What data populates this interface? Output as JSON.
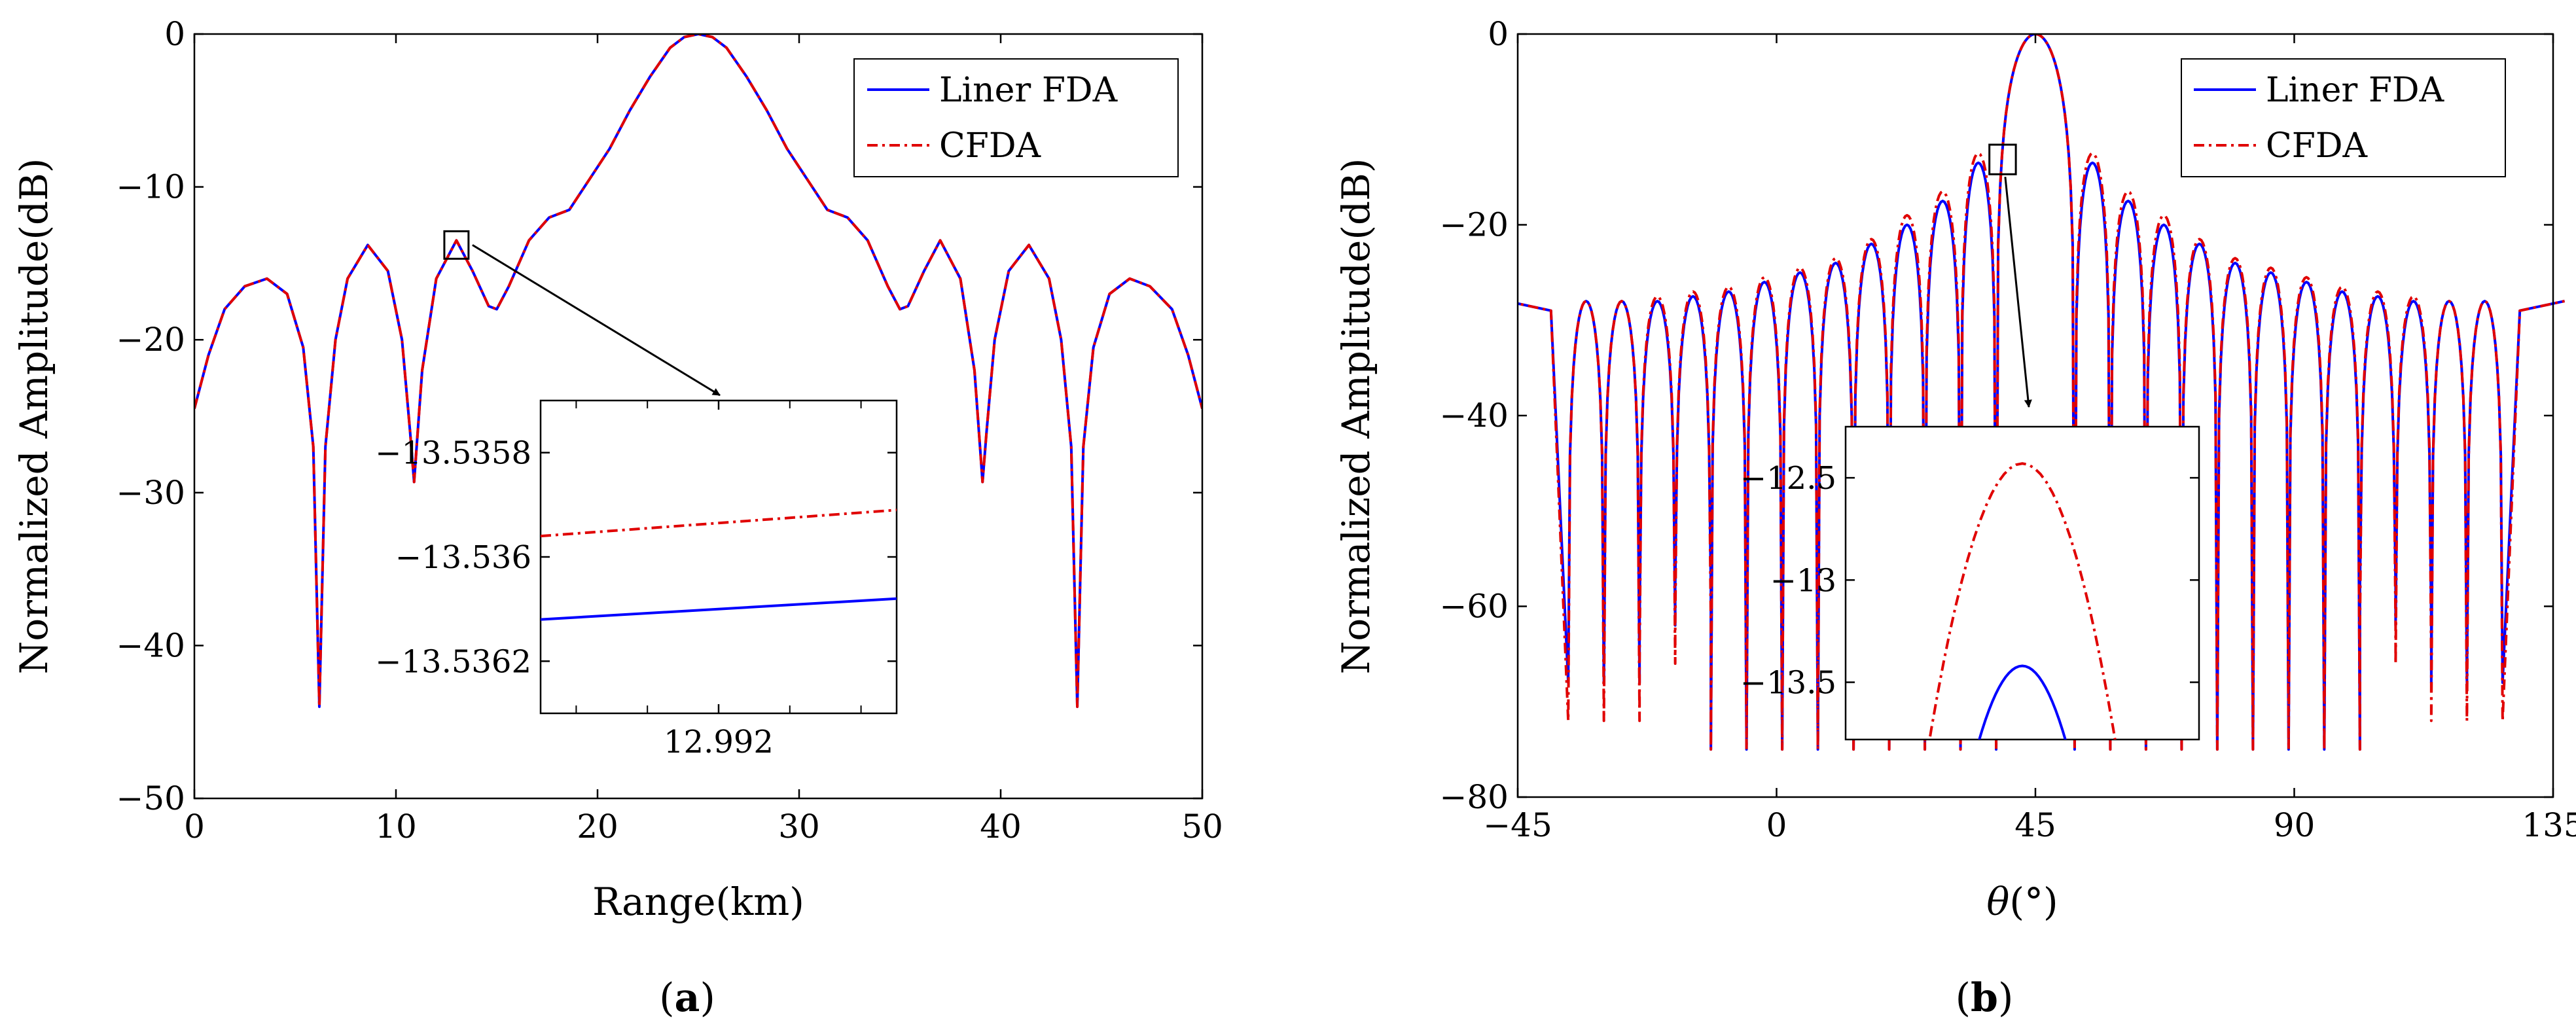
{
  "chart_data": [
    {
      "type": "line",
      "panel_label": "a",
      "xlabel": "Range(km)",
      "ylabel": "Normalized Amplitude(dB)",
      "xlim": [
        0,
        50
      ],
      "ylim": [
        -50,
        0
      ],
      "xticks": [
        0,
        10,
        20,
        30,
        40,
        50
      ],
      "yticks": [
        0,
        -10,
        -20,
        -30,
        -40,
        -50
      ],
      "grid": false,
      "legend_position": "top-right",
      "series": [
        {
          "name": "Liner FDA",
          "color": "#0000ff",
          "style": "solid",
          "x": [
            0.0,
            0.7,
            1.5,
            2.5,
            3.6,
            4.6,
            5.4,
            5.9,
            6.2,
            6.5,
            7.0,
            7.6,
            8.6,
            9.6,
            10.3,
            10.7,
            10.9,
            11.3,
            12.0,
            13.0,
            13.8,
            14.6,
            15.0,
            15.6,
            16.6,
            17.6,
            18.6,
            19.6,
            20.6,
            21.6,
            22.6,
            23.6,
            24.3,
            25.0,
            25.7,
            26.4,
            27.4,
            28.4,
            29.4,
            30.4,
            31.4,
            32.4,
            33.4,
            34.4,
            35.0,
            35.4,
            36.2,
            37.0,
            38.0,
            38.7,
            39.1,
            39.3,
            39.7,
            40.4,
            41.4,
            42.4,
            43.0,
            43.5,
            43.8,
            44.1,
            44.6,
            45.4,
            46.4,
            47.4,
            48.5,
            49.3,
            50.0
          ],
          "y": [
            -24.5,
            -21.0,
            -18.0,
            -16.5,
            -16.0,
            -17.0,
            -20.5,
            -27.0,
            -44.0,
            -27.0,
            -20.0,
            -16.0,
            -13.8,
            -15.5,
            -20.0,
            -26.0,
            -29.3,
            -22.0,
            -16.0,
            -13.5,
            -15.5,
            -17.8,
            -18.0,
            -16.5,
            -13.5,
            -12.0,
            -11.5,
            -9.5,
            -7.5,
            -5.0,
            -2.8,
            -0.9,
            -0.2,
            0.0,
            -0.2,
            -0.9,
            -2.8,
            -5.0,
            -7.5,
            -9.5,
            -11.5,
            -12.0,
            -13.5,
            -16.5,
            -18.0,
            -17.8,
            -15.5,
            -13.5,
            -16.0,
            -22.0,
            -29.3,
            -26.0,
            -20.0,
            -15.5,
            -13.8,
            -16.0,
            -20.0,
            -27.0,
            -44.0,
            -27.0,
            -20.5,
            -17.0,
            -16.0,
            -16.5,
            -18.0,
            -21.0,
            -24.5
          ]
        },
        {
          "name": "CFDA",
          "color": "#e00000",
          "style": "dash-dot",
          "x": [
            0.0,
            0.7,
            1.5,
            2.5,
            3.6,
            4.6,
            5.4,
            5.9,
            6.2,
            6.5,
            7.0,
            7.6,
            8.6,
            9.6,
            10.3,
            10.7,
            10.9,
            11.3,
            12.0,
            13.0,
            13.8,
            14.6,
            15.0,
            15.6,
            16.6,
            17.6,
            18.6,
            19.6,
            20.6,
            21.6,
            22.6,
            23.6,
            24.3,
            25.0,
            25.7,
            26.4,
            27.4,
            28.4,
            29.4,
            30.4,
            31.4,
            32.4,
            33.4,
            34.4,
            35.0,
            35.4,
            36.2,
            37.0,
            38.0,
            38.7,
            39.1,
            39.3,
            39.7,
            40.4,
            41.4,
            42.4,
            43.0,
            43.5,
            43.8,
            44.1,
            44.6,
            45.4,
            46.4,
            47.4,
            48.5,
            49.3,
            50.0
          ],
          "y": [
            -24.5,
            -21.0,
            -18.0,
            -16.5,
            -16.0,
            -17.0,
            -20.5,
            -27.0,
            -44.0,
            -27.0,
            -20.0,
            -16.0,
            -13.8,
            -15.5,
            -20.0,
            -26.0,
            -29.3,
            -22.0,
            -16.0,
            -13.5,
            -15.5,
            -17.8,
            -18.0,
            -16.5,
            -13.5,
            -12.0,
            -11.5,
            -9.5,
            -7.5,
            -5.0,
            -2.8,
            -0.9,
            -0.2,
            0.0,
            -0.2,
            -0.9,
            -2.8,
            -5.0,
            -7.5,
            -9.5,
            -11.5,
            -12.0,
            -13.5,
            -16.5,
            -18.0,
            -17.8,
            -15.5,
            -13.5,
            -16.0,
            -22.0,
            -29.3,
            -26.0,
            -20.0,
            -15.5,
            -13.8,
            -16.0,
            -20.0,
            -27.0,
            -44.0,
            -27.0,
            -20.5,
            -17.0,
            -16.0,
            -16.5,
            -18.0,
            -21.0,
            -24.5
          ]
        }
      ],
      "zoom_region": {
        "x": [
          12.4,
          13.6
        ],
        "y": [
          -14.7,
          -12.9
        ]
      },
      "inset": {
        "xlim": [
          12.9915,
          12.9925
        ],
        "ylim": [
          -13.5363,
          -13.5357
        ],
        "xticks": [
          12.992
        ],
        "xtick_labels": [
          "12.992"
        ],
        "yticks": [
          -13.5358,
          -13.536,
          -13.5362
        ],
        "ytick_labels": [
          "−13.5358",
          "−13.536",
          "−13.5362"
        ],
        "series": [
          {
            "name": "Liner FDA",
            "color": "#0000ff",
            "style": "solid",
            "x": [
              12.9915,
              12.9925
            ],
            "y": [
              -13.53612,
              -13.53608
            ]
          },
          {
            "name": "CFDA",
            "color": "#e00000",
            "style": "dash-dot",
            "x": [
              12.9915,
              12.9925
            ],
            "y": [
              -13.53596,
              -13.53591
            ]
          }
        ]
      }
    },
    {
      "type": "line",
      "panel_label": "b",
      "xlabel_symbol": "θ",
      "xlabel_unit": "(°)",
      "ylabel": "Normalized Amplitude(dB)",
      "xlim": [
        -45,
        135
      ],
      "ylim": [
        -80,
        0
      ],
      "xticks": [
        -45,
        0,
        45,
        90,
        135
      ],
      "yticks": [
        0,
        -20,
        -40,
        -60,
        -80
      ],
      "grid": false,
      "legend_position": "top-right",
      "mainlobe": {
        "center": 45,
        "sidelobe_spacing": 6.2,
        "lobes_each_side": 12
      },
      "sidelobe_peaks": {
        "Liner FDA": [
          -13.5,
          -17.5,
          -20.0,
          -22.0,
          -24.0,
          -25.0,
          -26.0,
          -27.0,
          -27.5,
          -28.0,
          -28.0,
          -28.0
        ],
        "CFDA": [
          -12.5,
          -16.5,
          -19.0,
          -21.5,
          -23.5,
          -24.5,
          -25.5,
          -26.5,
          -27.0,
          -27.5,
          -28.0,
          -28.0
        ]
      },
      "null_depths": {
        "Liner FDA": [
          -75,
          -75,
          -75,
          -75,
          -75,
          -75,
          -75,
          -75,
          -75,
          -58,
          -62,
          -68
        ],
        "CFDA": [
          -75,
          -75,
          -75,
          -75,
          -75,
          -75,
          -75,
          -75,
          -75,
          -62,
          -66,
          -72
        ]
      },
      "edge_level": -28,
      "series": [
        {
          "name": "Liner FDA",
          "color": "#0000ff",
          "style": "solid"
        },
        {
          "name": "CFDA",
          "color": "#e00000",
          "style": "dash-dot"
        }
      ],
      "zoom_region": {
        "x": [
          37.0,
          41.6
        ],
        "y": [
          -14.7,
          -11.6
        ]
      },
      "inset": {
        "xlim": [
          38.45,
          39.15
        ],
        "ylim": [
          -13.78,
          -12.25
        ],
        "yticks": [
          -12.5,
          -13,
          -13.5
        ],
        "ytick_labels": [
          "−12.5",
          "−13",
          "−13.5"
        ],
        "peak": {
          "center": 38.8,
          "Liner FDA": -13.42,
          "CFDA": -12.43
        }
      }
    }
  ]
}
